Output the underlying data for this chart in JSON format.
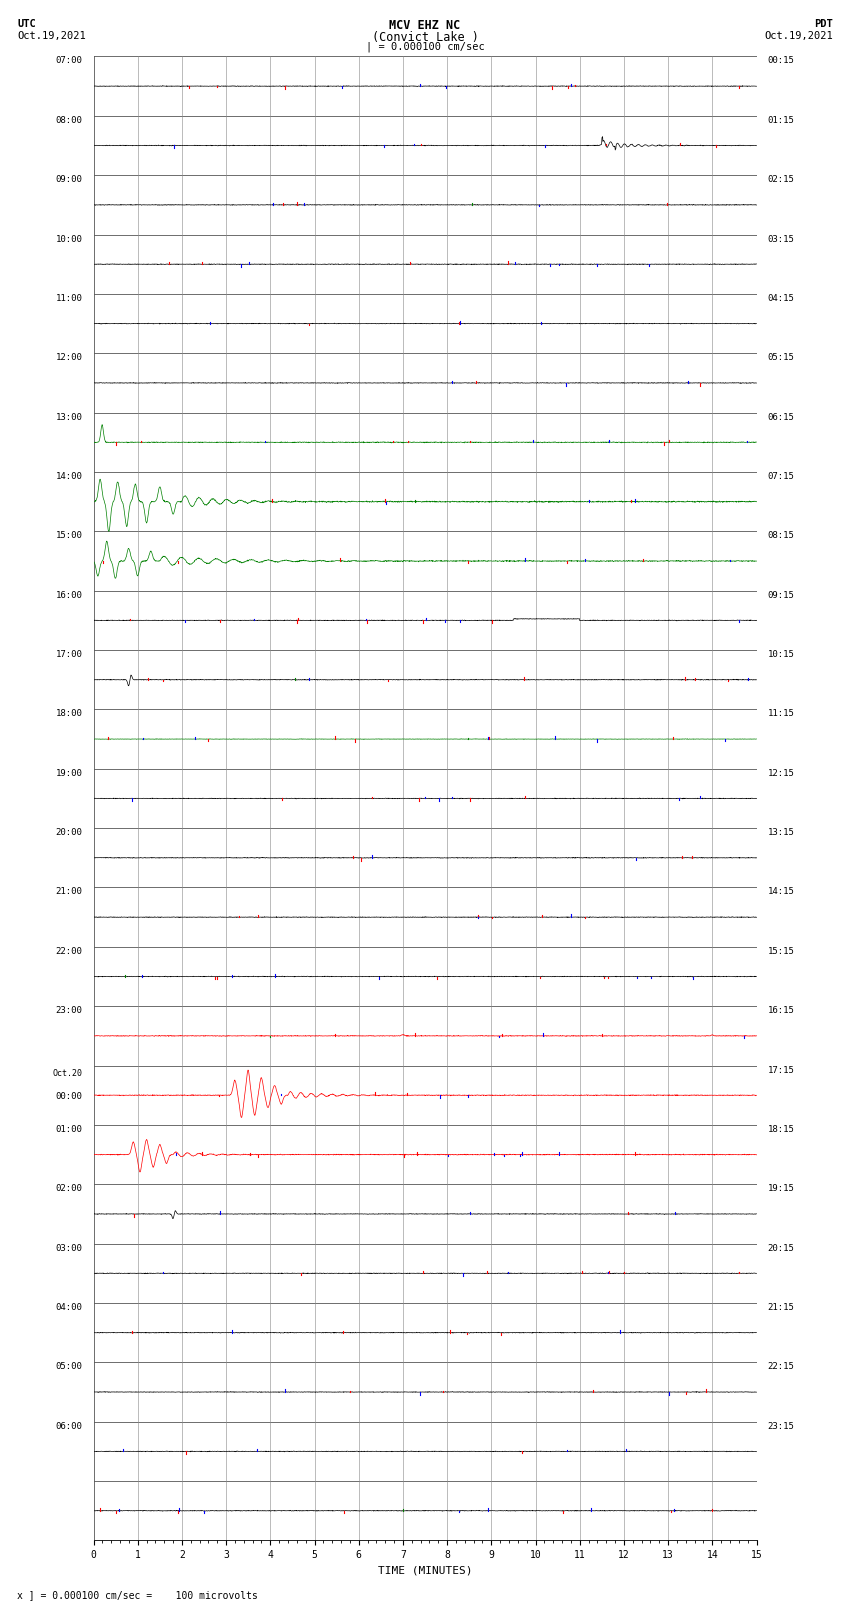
{
  "title_line1": "MCV EHZ NC",
  "title_line2": "(Convict Lake )",
  "title_line3": "| = 0.000100 cm/sec",
  "left_header_line1": "UTC",
  "left_header_line2": "Oct.19,2021",
  "right_header_line1": "PDT",
  "right_header_line2": "Oct.19,2021",
  "xlabel": "TIME (MINUTES)",
  "footer": "x ] = 0.000100 cm/sec =    100 microvolts",
  "num_rows": 25,
  "left_labels": [
    "07:00",
    "08:00",
    "09:00",
    "10:00",
    "11:00",
    "12:00",
    "13:00",
    "14:00",
    "15:00",
    "16:00",
    "17:00",
    "18:00",
    "19:00",
    "20:00",
    "21:00",
    "22:00",
    "23:00",
    "Oct.20\n00:00",
    "01:00",
    "02:00",
    "03:00",
    "04:00",
    "05:00",
    "06:00",
    ""
  ],
  "right_labels": [
    "00:15",
    "01:15",
    "02:15",
    "03:15",
    "04:15",
    "05:15",
    "06:15",
    "07:15",
    "08:15",
    "09:15",
    "10:15",
    "11:15",
    "12:15",
    "13:15",
    "14:15",
    "15:15",
    "16:15",
    "17:15",
    "18:15",
    "19:15",
    "20:15",
    "21:15",
    "22:15",
    "23:15",
    ""
  ],
  "bg_color": "#ffffff",
  "grid_color": "#888888",
  "seed": 42
}
